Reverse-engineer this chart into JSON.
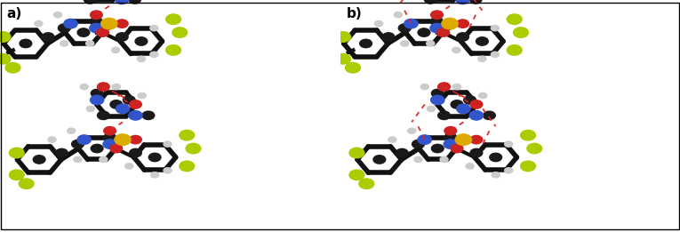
{
  "figsize": [
    7.65,
    2.61
  ],
  "dpi": 100,
  "background_color": "#ffffff",
  "label_a": "a)",
  "label_b": "b)",
  "label_fontsize": 11,
  "panel_split": 0.497,
  "border_color": "#000000",
  "border_linewidth": 1.0
}
